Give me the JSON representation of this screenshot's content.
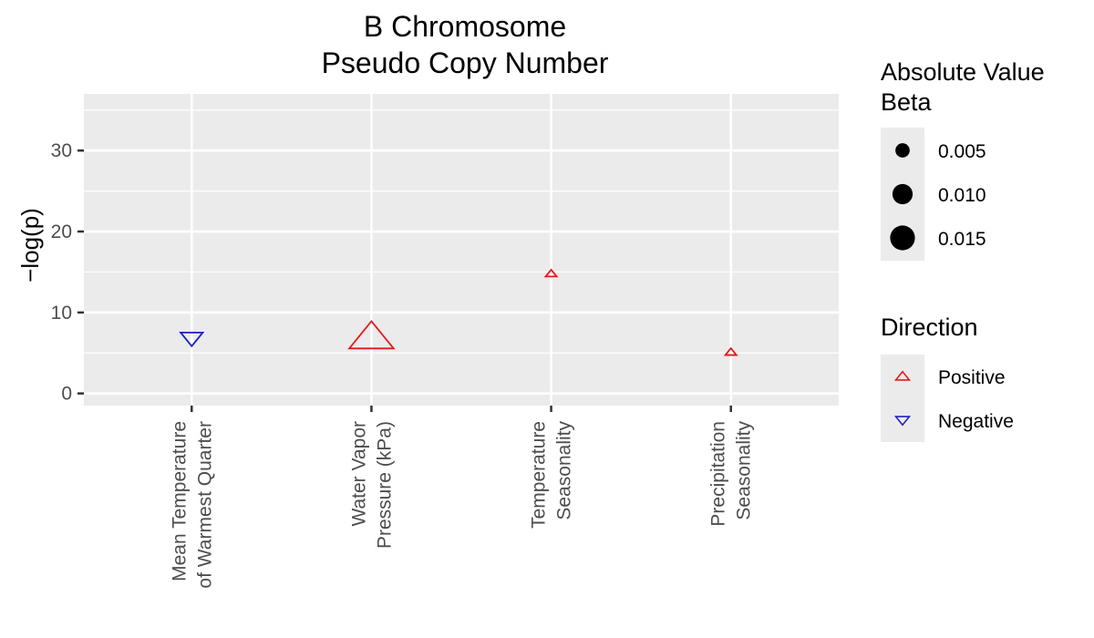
{
  "chart_data": {
    "type": "scatter",
    "title": [
      "B Chromosome",
      "Pseudo Copy Number"
    ],
    "xlabel": "",
    "ylabel": "−log(p)",
    "ylim": [
      -1.5,
      37
    ],
    "yticks": [
      0,
      10,
      20,
      30
    ],
    "categories": [
      [
        "Mean Temperature",
        "of Warmest Quarter"
      ],
      [
        "Water Vapor",
        "Pressure (kPa)"
      ],
      [
        "Temperature",
        "Seasonality"
      ],
      [
        "Precipitation",
        "Seasonality"
      ]
    ],
    "points": [
      {
        "category": 0,
        "y": 6.8,
        "abs_beta": 0.004,
        "direction": "Negative"
      },
      {
        "category": 1,
        "y": 7.0,
        "abs_beta": 0.016,
        "direction": "Positive"
      },
      {
        "category": 2,
        "y": 14.8,
        "abs_beta": 0.0008,
        "direction": "Positive"
      },
      {
        "category": 3,
        "y": 5.1,
        "abs_beta": 0.001,
        "direction": "Positive"
      }
    ],
    "grid": true,
    "legend": {
      "placement": "right",
      "size": {
        "title": [
          "Absolute Value",
          " Beta"
        ],
        "entries": [
          "0.005",
          "0.010",
          "0.015"
        ],
        "values": [
          0.005,
          0.01,
          0.015
        ]
      },
      "direction": {
        "title": "Direction",
        "entries": [
          "Positive",
          "Negative"
        ]
      }
    },
    "colors": {
      "Positive": "#e31a1c",
      "Negative": "#1f1fbf",
      "panel": "#ebebeb",
      "grid": "#ffffff"
    }
  }
}
